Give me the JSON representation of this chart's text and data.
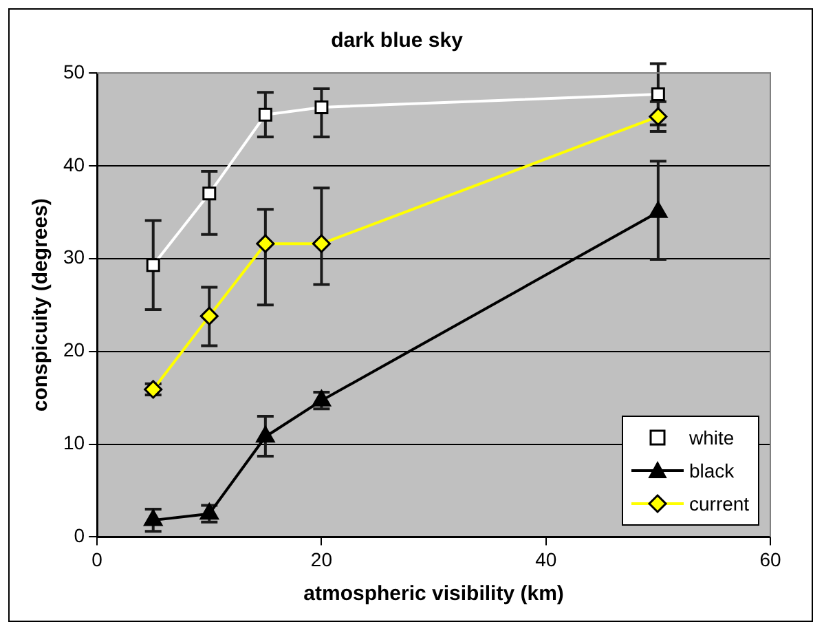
{
  "chart_data": {
    "type": "line",
    "title": "dark blue sky",
    "xlabel": "atmospheric visibility (km)",
    "ylabel": "conspicuity (degrees)",
    "x": [
      5,
      10,
      15,
      20,
      50
    ],
    "series": [
      {
        "name": "white",
        "color": "#ffffff",
        "marker": "square",
        "values": [
          29.3,
          37.0,
          45.5,
          46.3,
          47.7
        ],
        "errors": [
          [
            24.5,
            34.1
          ],
          [
            32.6,
            39.4
          ],
          [
            43.1,
            47.9
          ],
          [
            43.1,
            48.3
          ],
          [
            44.4,
            51.0
          ]
        ]
      },
      {
        "name": "black",
        "color": "#000000",
        "marker": "triangle",
        "values": [
          1.8,
          2.5,
          10.8,
          14.7,
          35.0
        ],
        "errors": [
          1.2,
          0.9,
          [
            8.7,
            13.0
          ],
          0.9,
          [
            29.9,
            40.5
          ]
        ]
      },
      {
        "name": "current",
        "color": "#ffff00",
        "marker": "diamond",
        "values": [
          15.9,
          23.8,
          31.6,
          31.6,
          45.3
        ],
        "errors": [
          0.6,
          [
            20.6,
            26.9
          ],
          [
            25.0,
            35.3
          ],
          [
            27.2,
            37.6
          ],
          [
            43.7,
            46.9
          ]
        ]
      }
    ],
    "xlim": [
      0,
      60
    ],
    "xticks": [
      0,
      20,
      40,
      60
    ],
    "ylim": [
      0,
      50
    ],
    "yticks": [
      0,
      10,
      20,
      30,
      40,
      50
    ],
    "grid": "y",
    "legend": "bottom right"
  }
}
